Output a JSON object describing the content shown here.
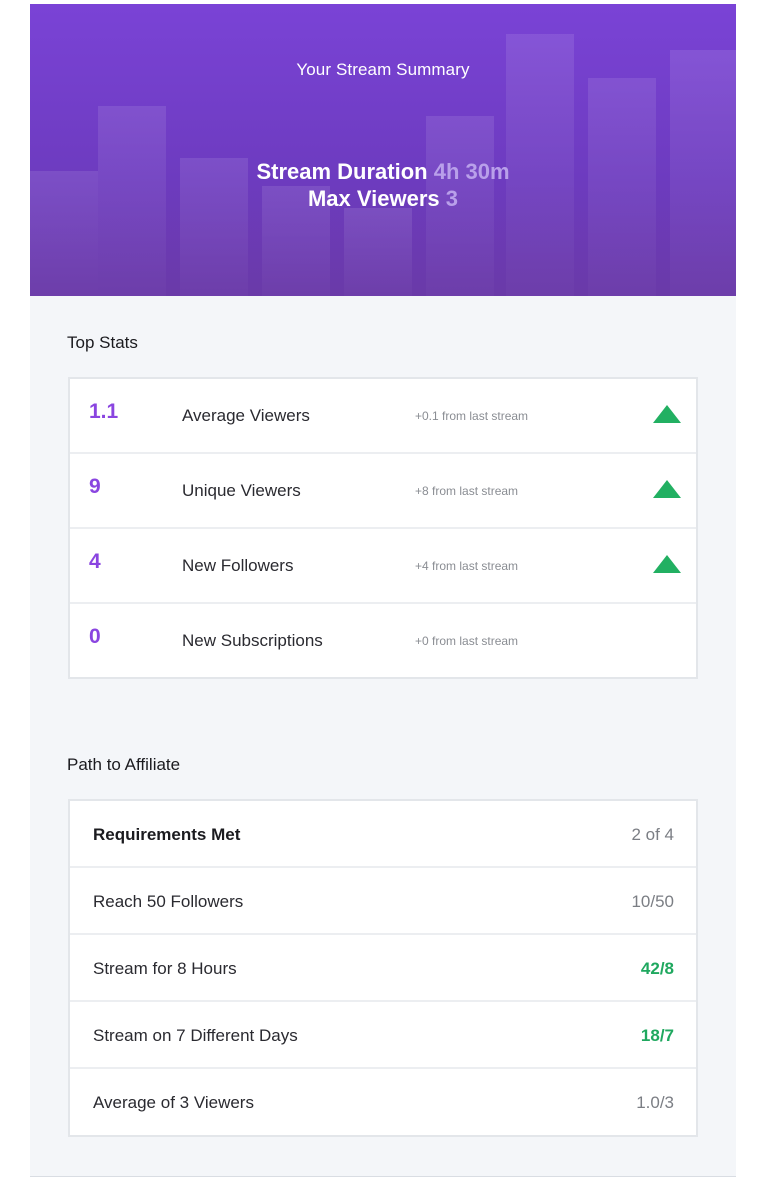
{
  "hero": {
    "title": "Your Stream Summary",
    "duration_label": "Stream Duration",
    "duration_value": "4h 30m",
    "max_viewers_label": "Max Viewers",
    "max_viewers_value": "3"
  },
  "top_stats": {
    "heading": "Top Stats",
    "rows": [
      {
        "value": "1.1",
        "label": "Average Viewers",
        "delta": "+0.1 from last stream",
        "trend": "up"
      },
      {
        "value": "9",
        "label": "Unique Viewers",
        "delta": "+8 from last stream",
        "trend": "up"
      },
      {
        "value": "4",
        "label": "New Followers",
        "delta": "+4 from last stream",
        "trend": "up"
      },
      {
        "value": "0",
        "label": "New Subscriptions",
        "delta": "+0 from last stream",
        "trend": "none"
      }
    ]
  },
  "affiliate": {
    "heading": "Path to Affiliate",
    "summary_label": "Requirements Met",
    "summary_value": "2 of 4",
    "requirements": [
      {
        "label": "Reach 50 Followers",
        "value": "10/50",
        "met": false
      },
      {
        "label": "Stream for 8 Hours",
        "value": "42/8",
        "met": true
      },
      {
        "label": "Stream on 7 Different Days",
        "value": "18/7",
        "met": true
      },
      {
        "label": "Average of 3 Viewers",
        "value": "1.0/3",
        "met": false
      }
    ]
  },
  "colors": {
    "accent_purple": "#8a45e0",
    "hero_purple": "#7a43d6",
    "success_green": "#22b062"
  },
  "icons": {
    "trend_up": "triangle-up-icon"
  }
}
